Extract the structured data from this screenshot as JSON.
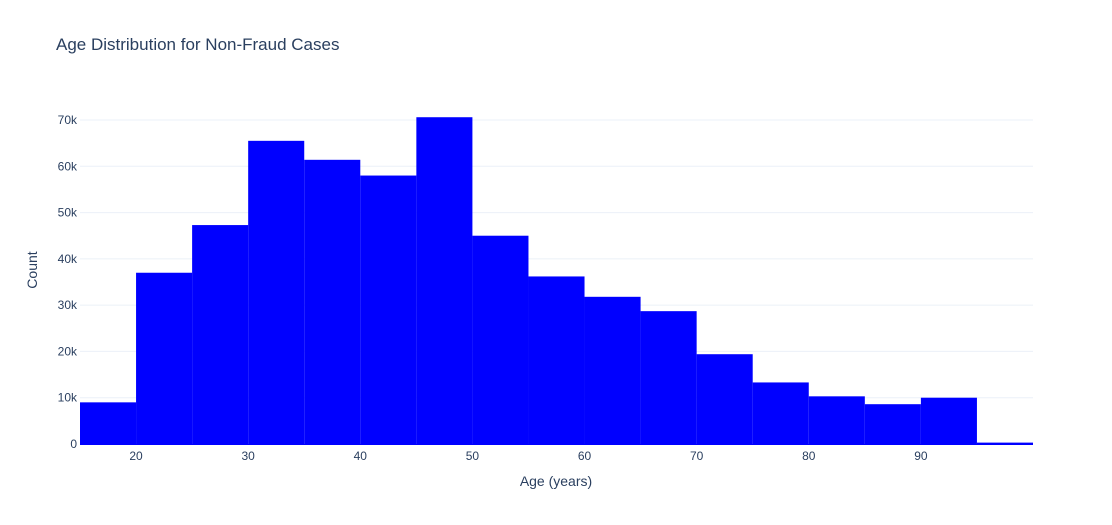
{
  "chart_data": {
    "type": "bar",
    "title": "Age Distribution for Non-Fraud Cases",
    "xlabel": "Age (years)",
    "ylabel": "Count",
    "bin_edges": [
      15,
      20,
      25,
      30,
      35,
      40,
      45,
      50,
      55,
      60,
      65,
      70,
      75,
      80,
      85,
      90,
      95,
      100
    ],
    "values": [
      9000,
      37000,
      47300,
      65500,
      61400,
      58000,
      70600,
      45000,
      36200,
      31800,
      28700,
      19400,
      13300,
      10300,
      8600,
      10000,
      300
    ],
    "xlim": [
      15,
      100
    ],
    "ylim": [
      0,
      70000
    ],
    "x_ticks": [
      20,
      30,
      40,
      50,
      60,
      70,
      80,
      90
    ],
    "x_tick_labels": [
      "20",
      "30",
      "40",
      "50",
      "60",
      "70",
      "80",
      "90"
    ],
    "y_ticks": [
      0,
      10000,
      20000,
      30000,
      40000,
      50000,
      60000,
      70000
    ],
    "y_tick_labels": [
      "0",
      "10k",
      "20k",
      "30k",
      "40k",
      "50k",
      "60k",
      "70k"
    ],
    "bar_color": "#0000ff",
    "grid": true,
    "grid_color": "#ebf0f8",
    "text_color": "#2a3f5f"
  }
}
